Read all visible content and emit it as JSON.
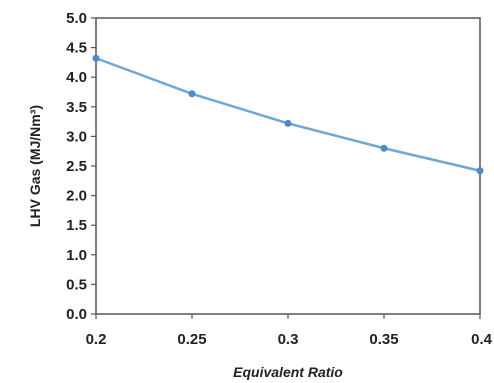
{
  "chart_data": {
    "type": "line",
    "title": "",
    "xlabel": "Equivalent Ratio",
    "ylabel": "LHV Gas  (MJ/Nm³)",
    "x": [
      0.2,
      0.25,
      0.3,
      0.35,
      0.4
    ],
    "series": [
      {
        "values": [
          4.32,
          3.72,
          3.22,
          2.8,
          2.42
        ]
      }
    ],
    "xlim": [
      0.2,
      0.4
    ],
    "ylim": [
      0.0,
      5.0
    ],
    "x_ticks": [
      "0.2",
      "0.25",
      "0.3",
      "0.35",
      "0.4"
    ],
    "y_ticks": [
      "0.0",
      "0.5",
      "1.0",
      "1.5",
      "2.0",
      "2.5",
      "3.0",
      "3.5",
      "4.0",
      "4.5",
      "5.0"
    ],
    "grid": false,
    "legend": "none",
    "line_color": "#6fa8d6",
    "marker_color": "#4f8bc4"
  }
}
